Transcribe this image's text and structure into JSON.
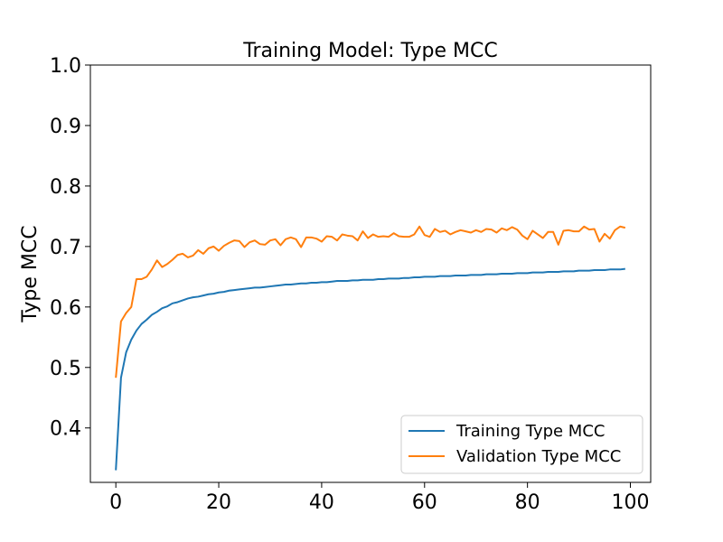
{
  "chart_data": {
    "type": "line",
    "title": "Training Model: Type MCC",
    "xlabel": "",
    "ylabel": "Type MCC",
    "xlim": [
      -4.95,
      103.95
    ],
    "ylim": [
      0.31,
      1.0
    ],
    "xticks": [
      0,
      20,
      40,
      60,
      80,
      100
    ],
    "yticks": [
      0.4,
      0.5,
      0.6,
      0.7,
      0.8,
      0.9,
      1.0
    ],
    "grid": false,
    "legend_position": "lower-right",
    "series": [
      {
        "name": "Training Type MCC",
        "color": "#1f77b4",
        "x": [
          0,
          1,
          2,
          3,
          4,
          5,
          6,
          7,
          8,
          9,
          10,
          11,
          12,
          13,
          14,
          15,
          16,
          17,
          18,
          19,
          20,
          21,
          22,
          23,
          24,
          25,
          26,
          27,
          28,
          29,
          30,
          31,
          32,
          33,
          34,
          35,
          36,
          37,
          38,
          39,
          40,
          41,
          42,
          43,
          44,
          45,
          46,
          47,
          48,
          49,
          50,
          51,
          52,
          53,
          54,
          55,
          56,
          57,
          58,
          59,
          60,
          61,
          62,
          63,
          64,
          65,
          66,
          67,
          68,
          69,
          70,
          71,
          72,
          73,
          74,
          75,
          76,
          77,
          78,
          79,
          80,
          81,
          82,
          83,
          84,
          85,
          86,
          87,
          88,
          89,
          90,
          91,
          92,
          93,
          94,
          95,
          96,
          97,
          98,
          99
        ],
        "y": [
          0.33,
          0.483,
          0.525,
          0.546,
          0.561,
          0.572,
          0.579,
          0.587,
          0.592,
          0.598,
          0.601,
          0.606,
          0.608,
          0.611,
          0.614,
          0.616,
          0.617,
          0.619,
          0.621,
          0.622,
          0.624,
          0.625,
          0.627,
          0.628,
          0.629,
          0.63,
          0.631,
          0.632,
          0.632,
          0.633,
          0.634,
          0.635,
          0.636,
          0.637,
          0.637,
          0.638,
          0.639,
          0.639,
          0.64,
          0.64,
          0.641,
          0.641,
          0.642,
          0.643,
          0.643,
          0.643,
          0.644,
          0.644,
          0.645,
          0.645,
          0.645,
          0.646,
          0.646,
          0.647,
          0.647,
          0.647,
          0.648,
          0.648,
          0.649,
          0.649,
          0.65,
          0.65,
          0.65,
          0.651,
          0.651,
          0.651,
          0.652,
          0.652,
          0.652,
          0.653,
          0.653,
          0.653,
          0.654,
          0.654,
          0.654,
          0.655,
          0.655,
          0.655,
          0.656,
          0.656,
          0.656,
          0.657,
          0.657,
          0.657,
          0.658,
          0.658,
          0.658,
          0.659,
          0.659,
          0.659,
          0.66,
          0.66,
          0.66,
          0.661,
          0.661,
          0.661,
          0.662,
          0.662,
          0.662,
          0.663
        ]
      },
      {
        "name": "Validation Type MCC",
        "color": "#ff7f0e",
        "x": [
          0,
          1,
          2,
          3,
          4,
          5,
          6,
          7,
          8,
          9,
          10,
          11,
          12,
          13,
          14,
          15,
          16,
          17,
          18,
          19,
          20,
          21,
          22,
          23,
          24,
          25,
          26,
          27,
          28,
          29,
          30,
          31,
          32,
          33,
          34,
          35,
          36,
          37,
          38,
          39,
          40,
          41,
          42,
          43,
          44,
          45,
          46,
          47,
          48,
          49,
          50,
          51,
          52,
          53,
          54,
          55,
          56,
          57,
          58,
          59,
          60,
          61,
          62,
          63,
          64,
          65,
          66,
          67,
          68,
          69,
          70,
          71,
          72,
          73,
          74,
          75,
          76,
          77,
          78,
          79,
          80,
          81,
          82,
          83,
          84,
          85,
          86,
          87,
          88,
          89,
          90,
          91,
          92,
          93,
          94,
          95,
          96,
          97,
          98,
          99
        ],
        "y": [
          0.483,
          0.576,
          0.59,
          0.6,
          0.646,
          0.646,
          0.65,
          0.662,
          0.677,
          0.666,
          0.671,
          0.678,
          0.686,
          0.688,
          0.682,
          0.685,
          0.694,
          0.688,
          0.697,
          0.7,
          0.693,
          0.701,
          0.706,
          0.71,
          0.709,
          0.699,
          0.707,
          0.71,
          0.704,
          0.703,
          0.71,
          0.712,
          0.702,
          0.712,
          0.715,
          0.712,
          0.699,
          0.715,
          0.715,
          0.713,
          0.708,
          0.717,
          0.716,
          0.71,
          0.72,
          0.718,
          0.717,
          0.71,
          0.725,
          0.714,
          0.72,
          0.716,
          0.717,
          0.716,
          0.722,
          0.717,
          0.716,
          0.716,
          0.72,
          0.733,
          0.719,
          0.716,
          0.729,
          0.724,
          0.726,
          0.72,
          0.724,
          0.727,
          0.725,
          0.723,
          0.727,
          0.724,
          0.729,
          0.728,
          0.723,
          0.73,
          0.727,
          0.732,
          0.728,
          0.718,
          0.712,
          0.726,
          0.72,
          0.714,
          0.724,
          0.724,
          0.703,
          0.726,
          0.727,
          0.725,
          0.725,
          0.733,
          0.728,
          0.729,
          0.708,
          0.721,
          0.713,
          0.727,
          0.733,
          0.731
        ]
      }
    ]
  }
}
